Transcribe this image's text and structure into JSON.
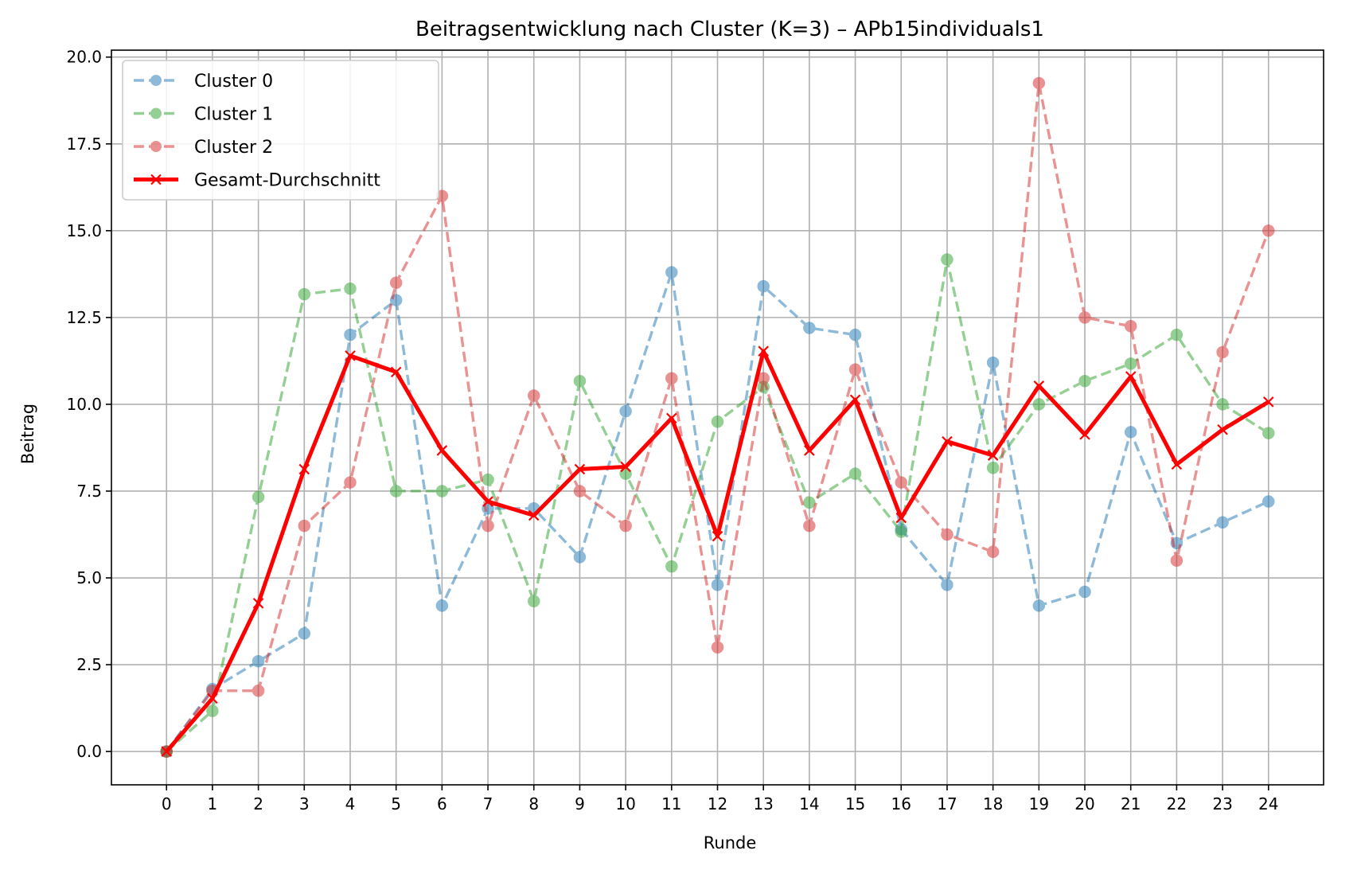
{
  "chart_data": {
    "type": "line",
    "title": "Beitragsentwicklung nach Cluster (K=3) – APb15individuals1",
    "xlabel": "Runde",
    "ylabel": "Beitrag",
    "x": [
      0,
      1,
      2,
      3,
      4,
      5,
      6,
      7,
      8,
      9,
      10,
      11,
      12,
      13,
      14,
      15,
      16,
      17,
      18,
      19,
      20,
      21,
      22,
      23,
      24
    ],
    "xlim": [
      -1.2,
      25.2
    ],
    "ylim": [
      -0.96,
      20.2
    ],
    "yticks": [
      0.0,
      2.5,
      5.0,
      7.5,
      10.0,
      12.5,
      15.0,
      17.5,
      20.0
    ],
    "ytick_labels": [
      "0.0",
      "2.5",
      "5.0",
      "7.5",
      "10.0",
      "12.5",
      "15.0",
      "17.5",
      "20.0"
    ],
    "xtick_labels": [
      "0",
      "1",
      "2",
      "3",
      "4",
      "5",
      "6",
      "7",
      "8",
      "9",
      "10",
      "11",
      "12",
      "13",
      "14",
      "15",
      "16",
      "17",
      "18",
      "19",
      "20",
      "21",
      "22",
      "23",
      "24"
    ],
    "grid": true,
    "legend_position": "top-left",
    "series": [
      {
        "name": "Cluster 0",
        "color": "#1f77b4",
        "style": "dashed-circle",
        "values": [
          0,
          1.8,
          2.6,
          3.4,
          12.0,
          13.0,
          4.2,
          7.0,
          7.0,
          5.6,
          9.8,
          13.8,
          4.8,
          13.4,
          12.2,
          12.0,
          6.4,
          4.8,
          11.2,
          4.2,
          4.6,
          9.2,
          6.0,
          6.6,
          7.2
        ]
      },
      {
        "name": "Cluster 1",
        "color": "#2ca02c",
        "style": "dashed-circle",
        "values": [
          0,
          1.17,
          7.33,
          13.17,
          13.33,
          7.5,
          7.5,
          7.83,
          4.33,
          10.67,
          8.0,
          5.33,
          9.5,
          10.5,
          7.17,
          8.0,
          6.33,
          14.17,
          8.17,
          10.0,
          10.67,
          11.17,
          12.0,
          10.0,
          9.17
        ]
      },
      {
        "name": "Cluster 2",
        "color": "#d62728",
        "style": "dashed-circle",
        "values": [
          0,
          1.75,
          1.75,
          6.5,
          7.75,
          13.5,
          16.0,
          6.5,
          10.25,
          7.5,
          6.5,
          10.75,
          3.0,
          10.75,
          6.5,
          11.0,
          7.75,
          6.25,
          5.75,
          19.25,
          12.5,
          12.25,
          5.5,
          11.5,
          15.0
        ]
      },
      {
        "name": "Gesamt-Durchschnitt",
        "color": "#ff0000",
        "style": "solid-x",
        "values": [
          0,
          1.53,
          4.27,
          8.13,
          11.4,
          10.93,
          8.67,
          7.2,
          6.8,
          8.13,
          8.2,
          9.6,
          6.2,
          11.53,
          8.67,
          10.13,
          6.73,
          8.93,
          8.53,
          10.53,
          9.13,
          10.8,
          8.27,
          9.27,
          10.07
        ]
      }
    ]
  }
}
